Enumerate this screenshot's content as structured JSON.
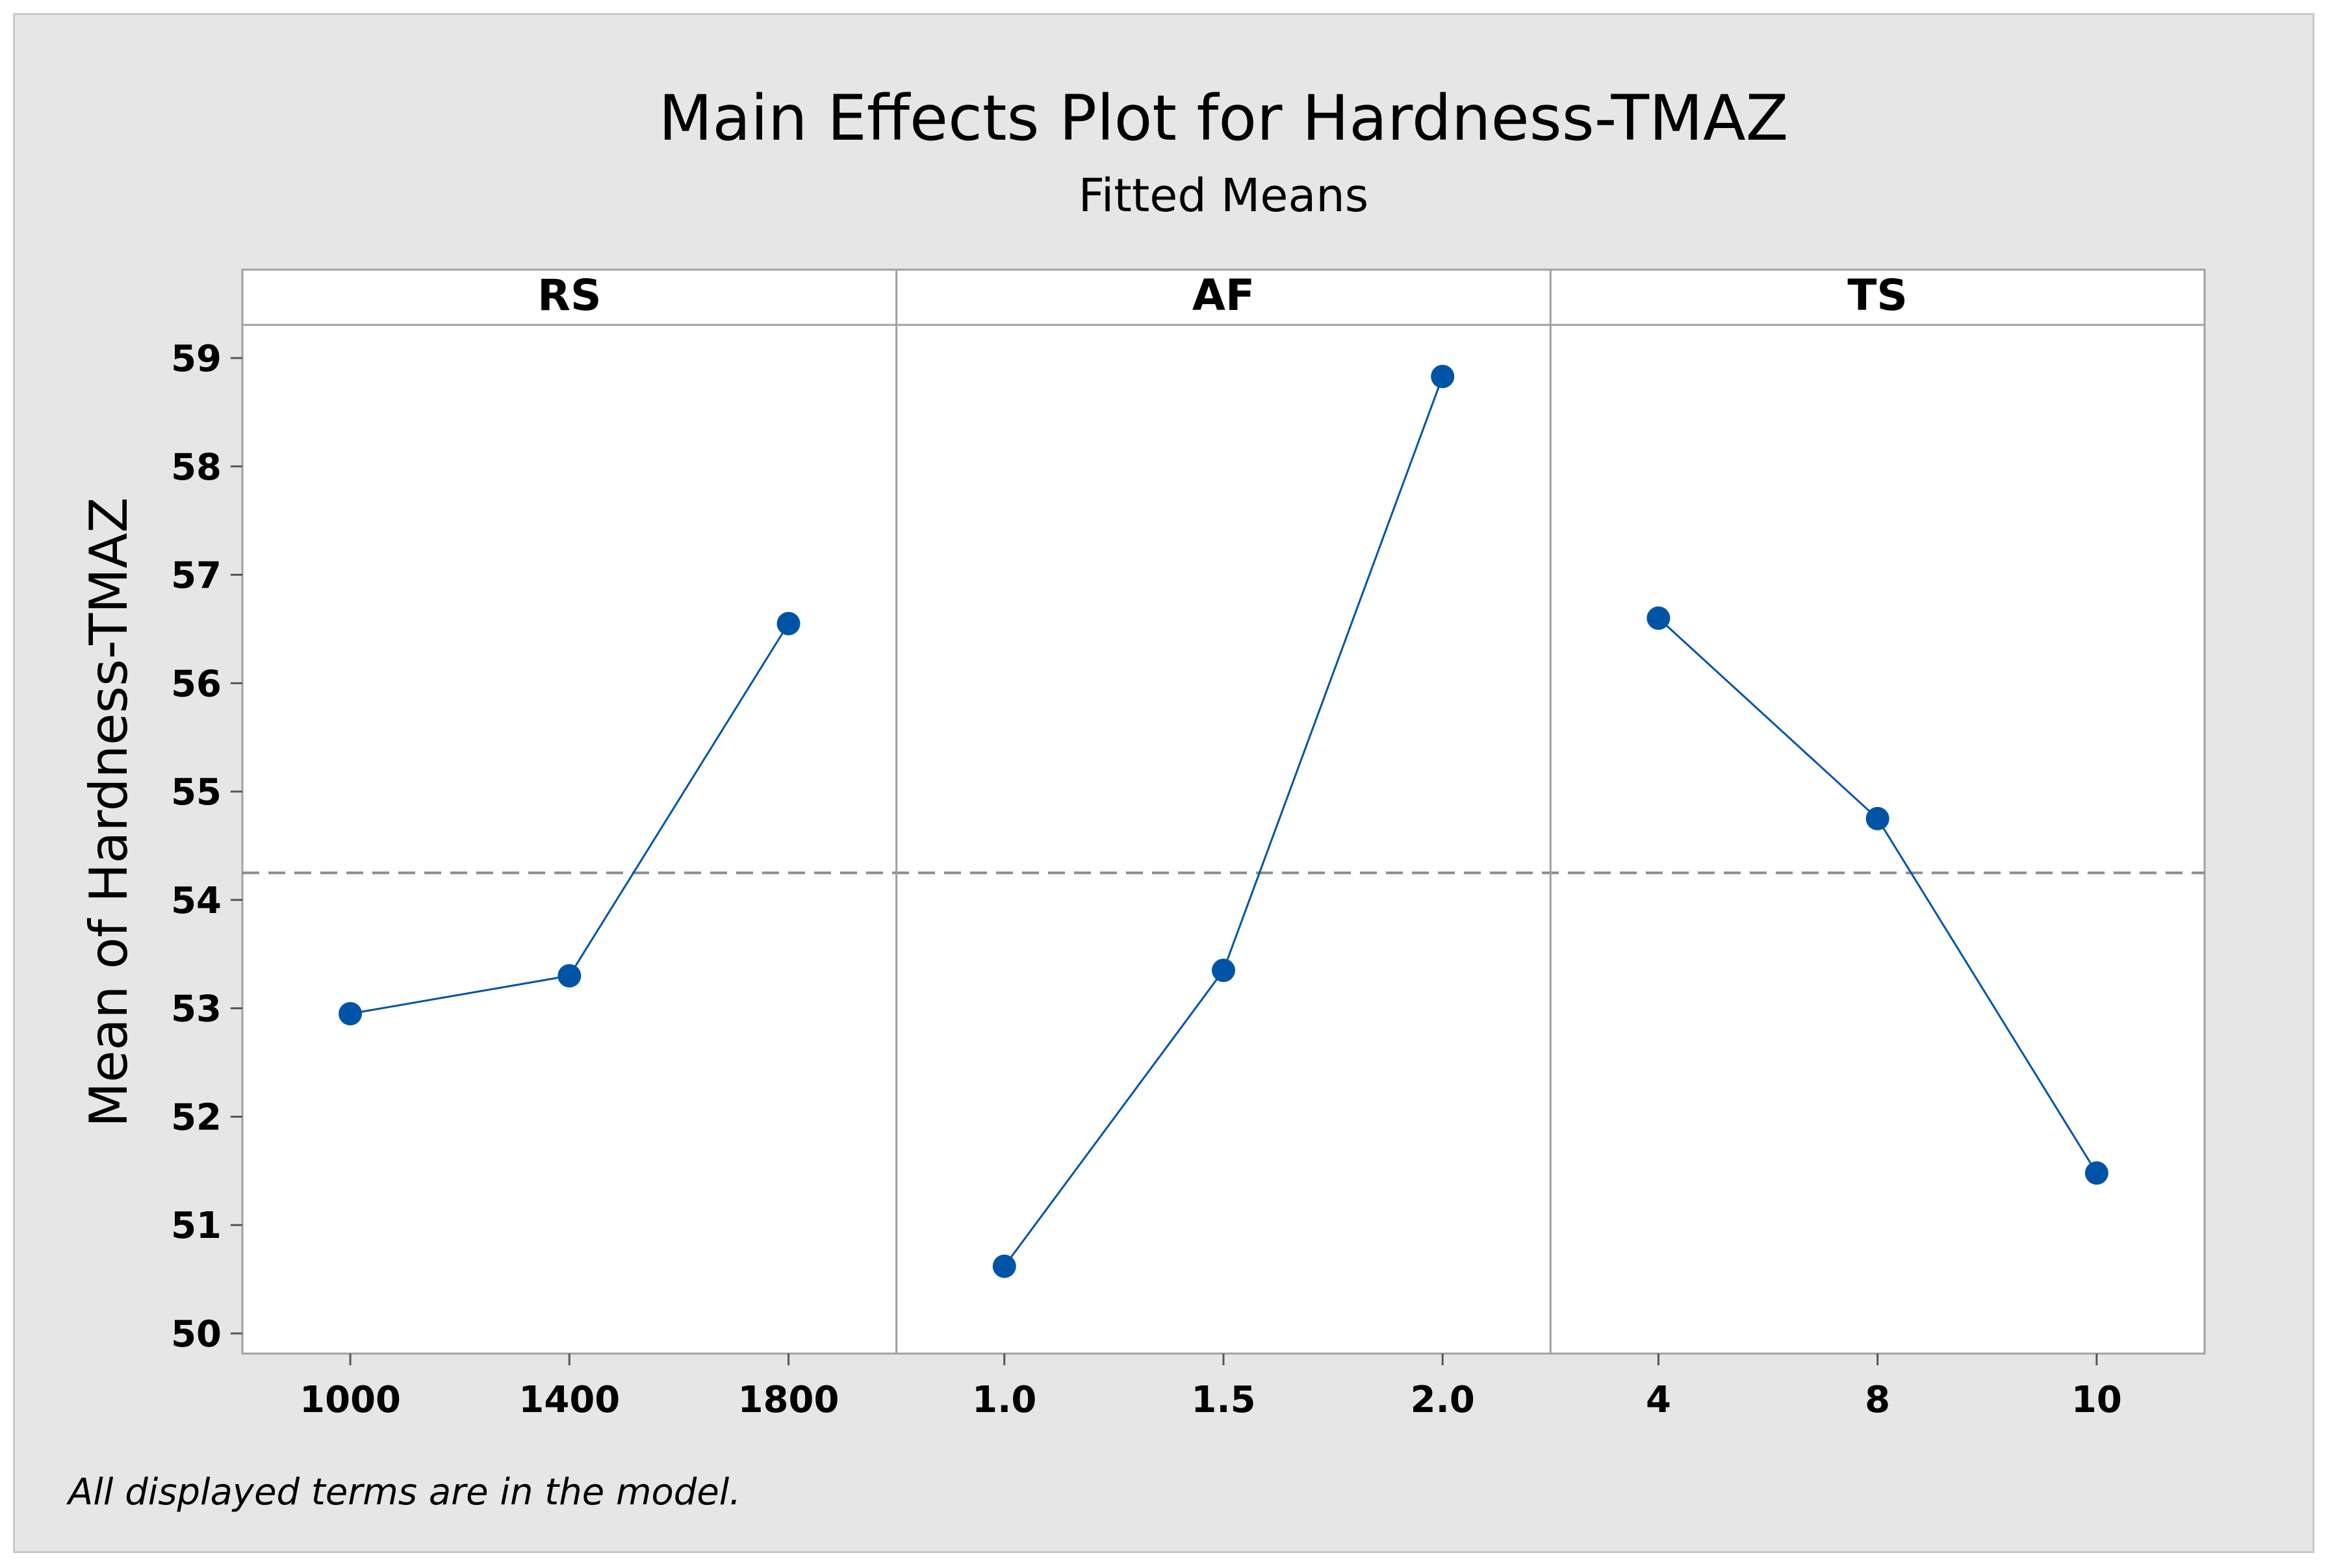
{
  "colors": {
    "frame_bg": "#e6e6e6",
    "plot_bg": "#ffffff",
    "series": "#0054a6",
    "reference": "#8c8c8c",
    "panel_border": "#a0a0a0"
  },
  "footnote": "All displayed terms are in the model.",
  "chart_data": {
    "type": "line",
    "title": "Main Effects Plot for Hardness-TMAZ",
    "subtitle": "Fitted Means",
    "ylabel": "Mean of Hardness-TMAZ",
    "ylim": [
      49.8,
      59.3
    ],
    "yticks": [
      "50",
      "51",
      "52",
      "53",
      "54",
      "55",
      "56",
      "57",
      "58",
      "59"
    ],
    "reference_line": 54.25,
    "panels": [
      {
        "name": "RS",
        "categories": [
          "1000",
          "1400",
          "1800"
        ],
        "values": [
          52.95,
          53.3,
          56.55
        ]
      },
      {
        "name": "AF",
        "categories": [
          "1.0",
          "1.5",
          "2.0"
        ],
        "values": [
          50.62,
          53.35,
          58.83
        ]
      },
      {
        "name": "TS",
        "categories": [
          "4",
          "8",
          "10"
        ],
        "values": [
          56.6,
          54.75,
          51.48
        ]
      }
    ]
  }
}
